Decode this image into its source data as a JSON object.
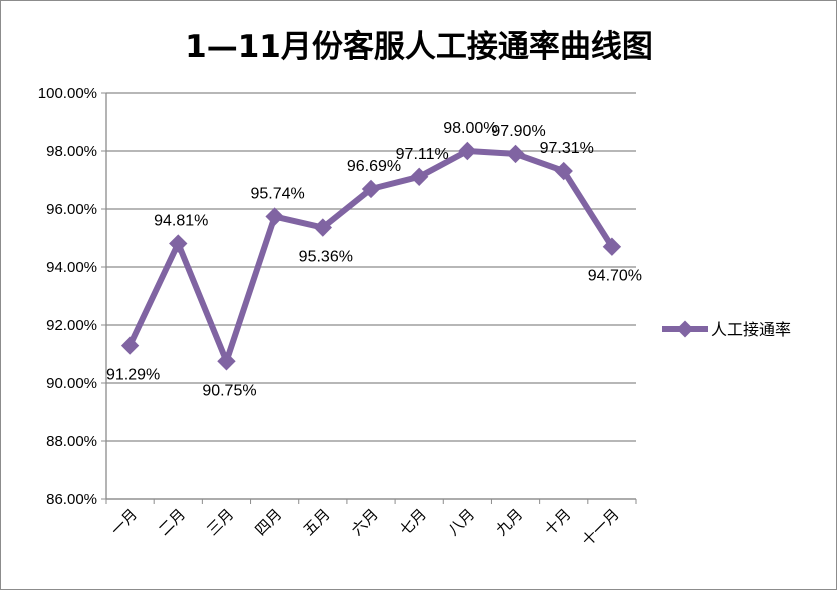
{
  "chart_data": {
    "type": "line",
    "title": "1—11月份客服人工接通率曲线图",
    "categories": [
      "一月",
      "二月",
      "三月",
      "四月",
      "五月",
      "六月",
      "七月",
      "八月",
      "九月",
      "十月",
      "十一月"
    ],
    "series": [
      {
        "name": "人工接通率",
        "values": [
          91.29,
          94.81,
          90.75,
          95.74,
          95.36,
          96.69,
          97.11,
          98.0,
          97.9,
          97.31,
          94.7
        ],
        "labels": [
          "91.29%",
          "94.81%",
          "90.75%",
          "95.74%",
          "95.36%",
          "96.69%",
          "97.11%",
          "98.00%",
          "97.90%",
          "97.31%",
          "94.70%"
        ],
        "color": "#8064a2"
      }
    ],
    "y_ticks": [
      "86.00%",
      "88.00%",
      "90.00%",
      "92.00%",
      "94.00%",
      "96.00%",
      "98.00%",
      "100.00%"
    ],
    "ylim": [
      86,
      100
    ],
    "grid": true,
    "legend_position": "right",
    "colors": {
      "gridline": "#8c8c8c",
      "axis": "#8c8c8c"
    }
  }
}
